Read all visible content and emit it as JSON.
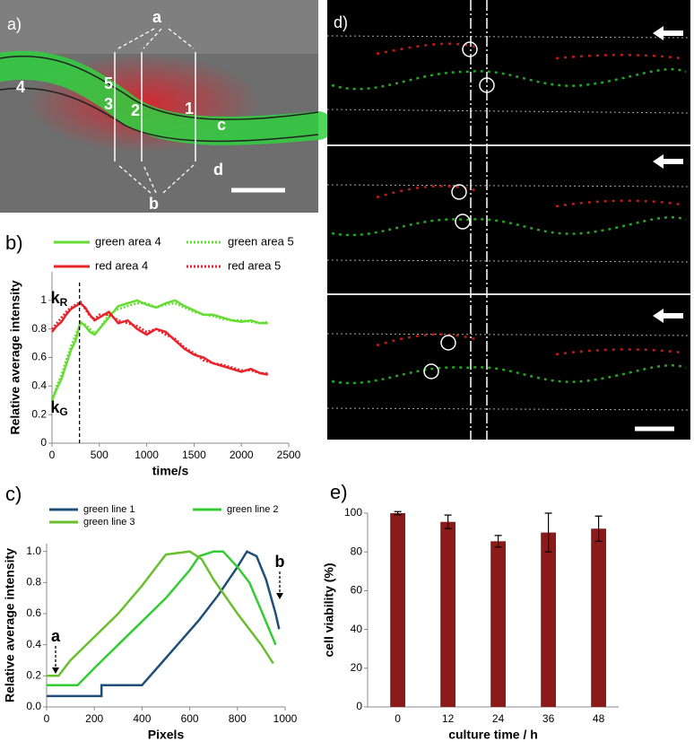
{
  "figure": {
    "panel_a": {
      "label": "a)",
      "marks": [
        "a",
        "b",
        "c",
        "d",
        "1",
        "2",
        "3",
        "4",
        "5"
      ]
    },
    "panel_d": {
      "label": "d)"
    }
  },
  "chart_data": [
    {
      "type": "line",
      "panel_label": "b)",
      "ylabel": "Relative average intensity",
      "xlabel": "time/s",
      "xlim": [
        0,
        2500
      ],
      "xticks": [
        0,
        500,
        1000,
        1500,
        2000,
        2500
      ],
      "ylim": [
        0,
        1.2
      ],
      "yticks": [
        0,
        0.2,
        0.4,
        0.6,
        0.8,
        1
      ],
      "vline_x": 290,
      "annotations": [
        {
          "text": "k",
          "sub": "R"
        },
        {
          "text": "k",
          "sub": "G"
        }
      ],
      "series": [
        {
          "name": "green area 4",
          "color": "#66dd33",
          "dash": false,
          "x": [
            0,
            50,
            100,
            150,
            200,
            250,
            300,
            350,
            400,
            450,
            500,
            600,
            700,
            800,
            900,
            1000,
            1100,
            1200,
            1300,
            1400,
            1500,
            1600,
            1700,
            1800,
            1900,
            2000,
            2100,
            2200,
            2280
          ],
          "values": [
            0.3,
            0.38,
            0.45,
            0.55,
            0.65,
            0.72,
            0.85,
            0.82,
            0.78,
            0.76,
            0.8,
            0.88,
            0.96,
            0.98,
            1.0,
            0.97,
            0.95,
            0.98,
            1.0,
            0.96,
            0.93,
            0.9,
            0.9,
            0.88,
            0.86,
            0.85,
            0.86,
            0.84,
            0.84
          ]
        },
        {
          "name": "green area 5",
          "color": "#66dd33",
          "dash": true,
          "x": [
            0,
            50,
            100,
            150,
            200,
            250,
            300,
            350,
            400,
            450,
            500,
            600,
            700,
            800,
            900,
            1000,
            1100,
            1200,
            1300,
            1400,
            1500,
            1600,
            1700,
            1800,
            1900,
            2000,
            2100,
            2200,
            2280
          ],
          "values": [
            0.3,
            0.4,
            0.48,
            0.58,
            0.68,
            0.76,
            0.84,
            0.83,
            0.8,
            0.77,
            0.8,
            0.9,
            0.94,
            0.96,
            0.98,
            0.98,
            0.95,
            0.97,
            0.98,
            0.95,
            0.92,
            0.9,
            0.89,
            0.87,
            0.86,
            0.86,
            0.85,
            0.84,
            0.85
          ]
        },
        {
          "name": "red area 4",
          "color": "#e8232a",
          "dash": false,
          "x": [
            0,
            50,
            100,
            150,
            200,
            250,
            300,
            350,
            400,
            450,
            500,
            600,
            700,
            800,
            900,
            1000,
            1100,
            1200,
            1300,
            1400,
            1500,
            1600,
            1700,
            1800,
            1900,
            2000,
            2100,
            2200,
            2280
          ],
          "values": [
            0.78,
            0.82,
            0.85,
            0.9,
            0.94,
            0.96,
            0.98,
            0.95,
            0.9,
            0.86,
            0.88,
            0.92,
            0.84,
            0.86,
            0.8,
            0.76,
            0.8,
            0.78,
            0.72,
            0.66,
            0.62,
            0.6,
            0.56,
            0.54,
            0.52,
            0.5,
            0.52,
            0.49,
            0.48
          ]
        },
        {
          "name": "red area 5",
          "color": "#e8232a",
          "dash": true,
          "x": [
            0,
            50,
            100,
            150,
            200,
            250,
            300,
            350,
            400,
            450,
            500,
            600,
            700,
            800,
            900,
            1000,
            1100,
            1200,
            1300,
            1400,
            1500,
            1600,
            1700,
            1800,
            1900,
            2000,
            2100,
            2200,
            2280
          ],
          "values": [
            0.8,
            0.84,
            0.88,
            0.92,
            0.95,
            0.97,
            0.99,
            0.94,
            0.89,
            0.87,
            0.9,
            0.9,
            0.86,
            0.84,
            0.82,
            0.78,
            0.8,
            0.76,
            0.73,
            0.67,
            0.63,
            0.58,
            0.56,
            0.55,
            0.53,
            0.51,
            0.51,
            0.49,
            0.49
          ]
        }
      ]
    },
    {
      "type": "line",
      "panel_label": "c)",
      "ylabel": "Relative average intensity",
      "xlabel": "Pixels",
      "xlim": [
        0,
        1000
      ],
      "xticks": [
        0,
        200,
        400,
        600,
        800,
        1000
      ],
      "ylim": [
        0,
        1.05
      ],
      "yticks": [
        {
          "value": 0,
          "label": "0.0"
        },
        {
          "value": 0.2,
          "label": "0.2"
        },
        {
          "value": 0.4,
          "label": "0.4"
        },
        {
          "value": 0.6,
          "label": "0.6"
        },
        {
          "value": 0.8,
          "label": "0.8"
        },
        {
          "value": 1,
          "label": "1.0"
        }
      ],
      "annotations": [
        {
          "text": "a"
        },
        {
          "text": "b"
        }
      ],
      "series": [
        {
          "name": "green line 1",
          "color": "#1f4e79",
          "dash": false,
          "x": [
            0,
            230,
            230,
            400,
            480,
            560,
            640,
            720,
            800,
            840,
            880,
            920,
            960,
            975
          ],
          "values": [
            0.07,
            0.07,
            0.14,
            0.14,
            0.28,
            0.42,
            0.56,
            0.72,
            0.9,
            1.0,
            0.97,
            0.82,
            0.6,
            0.5
          ]
        },
        {
          "name": "green line 2",
          "color": "#33cc33",
          "dash": false,
          "x": [
            0,
            130,
            200,
            300,
            400,
            500,
            600,
            640,
            700,
            740,
            800,
            850,
            900,
            960
          ],
          "values": [
            0.14,
            0.14,
            0.25,
            0.4,
            0.55,
            0.7,
            0.88,
            0.97,
            1.0,
            1.0,
            0.9,
            0.8,
            0.62,
            0.4
          ]
        },
        {
          "name": "green line 3",
          "color": "#6abf2e",
          "dash": false,
          "x": [
            0,
            50,
            100,
            200,
            300,
            400,
            500,
            600,
            650,
            700,
            800,
            900,
            950
          ],
          "values": [
            0.2,
            0.2,
            0.3,
            0.45,
            0.6,
            0.78,
            0.98,
            1.0,
            0.95,
            0.82,
            0.6,
            0.4,
            0.28
          ]
        }
      ]
    },
    {
      "type": "bar",
      "panel_label": "e)",
      "ylabel": "cell viability (%)",
      "xlabel": "culture time / h",
      "categories": [
        "0",
        "12",
        "24",
        "36",
        "48"
      ],
      "values": [
        100,
        95.5,
        85.5,
        90,
        92
      ],
      "errors": [
        0.8,
        3.5,
        3,
        10,
        6.5
      ],
      "color": "#8b1a1a",
      "ylim": [
        0,
        100
      ],
      "yticks": [
        0,
        20,
        40,
        60,
        80,
        100
      ]
    }
  ]
}
